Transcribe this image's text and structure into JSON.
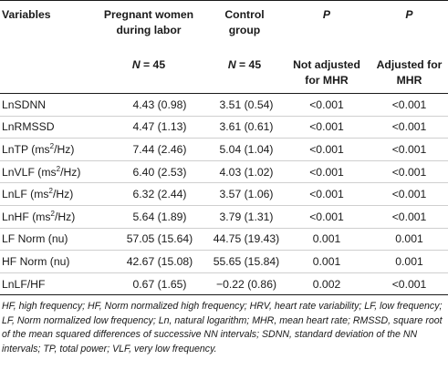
{
  "table": {
    "headers": {
      "variables": "Variables",
      "pregnant": [
        "Pregnant women",
        "during labor"
      ],
      "control": [
        "Control",
        "group"
      ],
      "p1": "P",
      "p2": "P"
    },
    "subheaders": {
      "pregnant_n_symbol": "N",
      "pregnant_n_value": " = 45",
      "control_n_symbol": "N",
      "control_n_value": " = 45",
      "p1": [
        "Not adjusted",
        "for MHR"
      ],
      "p2": [
        "Adjusted for",
        "MHR"
      ]
    },
    "rows": [
      {
        "var": "LnSDNN",
        "unit": "",
        "unit_sup": "",
        "unit_tail": "",
        "pregnant": "4.43 (0.98)",
        "control": "3.51 (0.54)",
        "p1": "<0.001",
        "p2": "<0.001"
      },
      {
        "var": "LnRMSSD",
        "unit": "",
        "unit_sup": "",
        "unit_tail": "",
        "pregnant": "4.47 (1.13)",
        "control": "3.61 (0.61)",
        "p1": "<0.001",
        "p2": "<0.001"
      },
      {
        "var": "LnTP",
        "unit": " (ms",
        "unit_sup": "2",
        "unit_tail": "/Hz)",
        "pregnant": "7.44 (2.46)",
        "control": "5.04 (1.04)",
        "p1": "<0.001",
        "p2": "<0.001"
      },
      {
        "var": "LnVLF",
        "unit": " (ms",
        "unit_sup": "2",
        "unit_tail": "/Hz)",
        "pregnant": "6.40 (2.53)",
        "control": "4.03 (1.02)",
        "p1": "<0.001",
        "p2": "<0.001"
      },
      {
        "var": "LnLF",
        "unit": " (ms",
        "unit_sup": "2",
        "unit_tail": "/Hz)",
        "pregnant": "6.32 (2.44)",
        "control": "3.57 (1.06)",
        "p1": "<0.001",
        "p2": "<0.001"
      },
      {
        "var": "LnHF",
        "unit": " (ms",
        "unit_sup": "2",
        "unit_tail": "/Hz)",
        "pregnant": "5.64 (1.89)",
        "control": "3.79 (1.31)",
        "p1": "<0.001",
        "p2": "<0.001"
      },
      {
        "var": "LF Norm (nu)",
        "unit": "",
        "unit_sup": "",
        "unit_tail": "",
        "pregnant": "57.05 (15.64)",
        "control": "44.75 (19.43)",
        "p1": "0.001",
        "p2": "0.001"
      },
      {
        "var": "HF Norm (nu)",
        "unit": "",
        "unit_sup": "",
        "unit_tail": "",
        "pregnant": "42.67 (15.08)",
        "control": "55.65 (15.84)",
        "p1": "0.001",
        "p2": "0.001"
      },
      {
        "var": "LnLF/HF",
        "unit": "",
        "unit_sup": "",
        "unit_tail": "",
        "pregnant": "0.67 (1.65)",
        "control": "−0.22 (0.86)",
        "p1": "0.002",
        "p2": "<0.001"
      }
    ]
  },
  "footnote": "HF, high frequency; HF, Norm normalized high frequency; HRV, heart rate variability; LF, low frequency; LF, Norm normalized low frequency; Ln, natural logarithm; MHR, mean heart rate; RMSSD, square root of the mean squared differences of successive NN intervals; SDNN, standard deviation of the NN intervals; TP, total power; VLF, very low frequency."
}
